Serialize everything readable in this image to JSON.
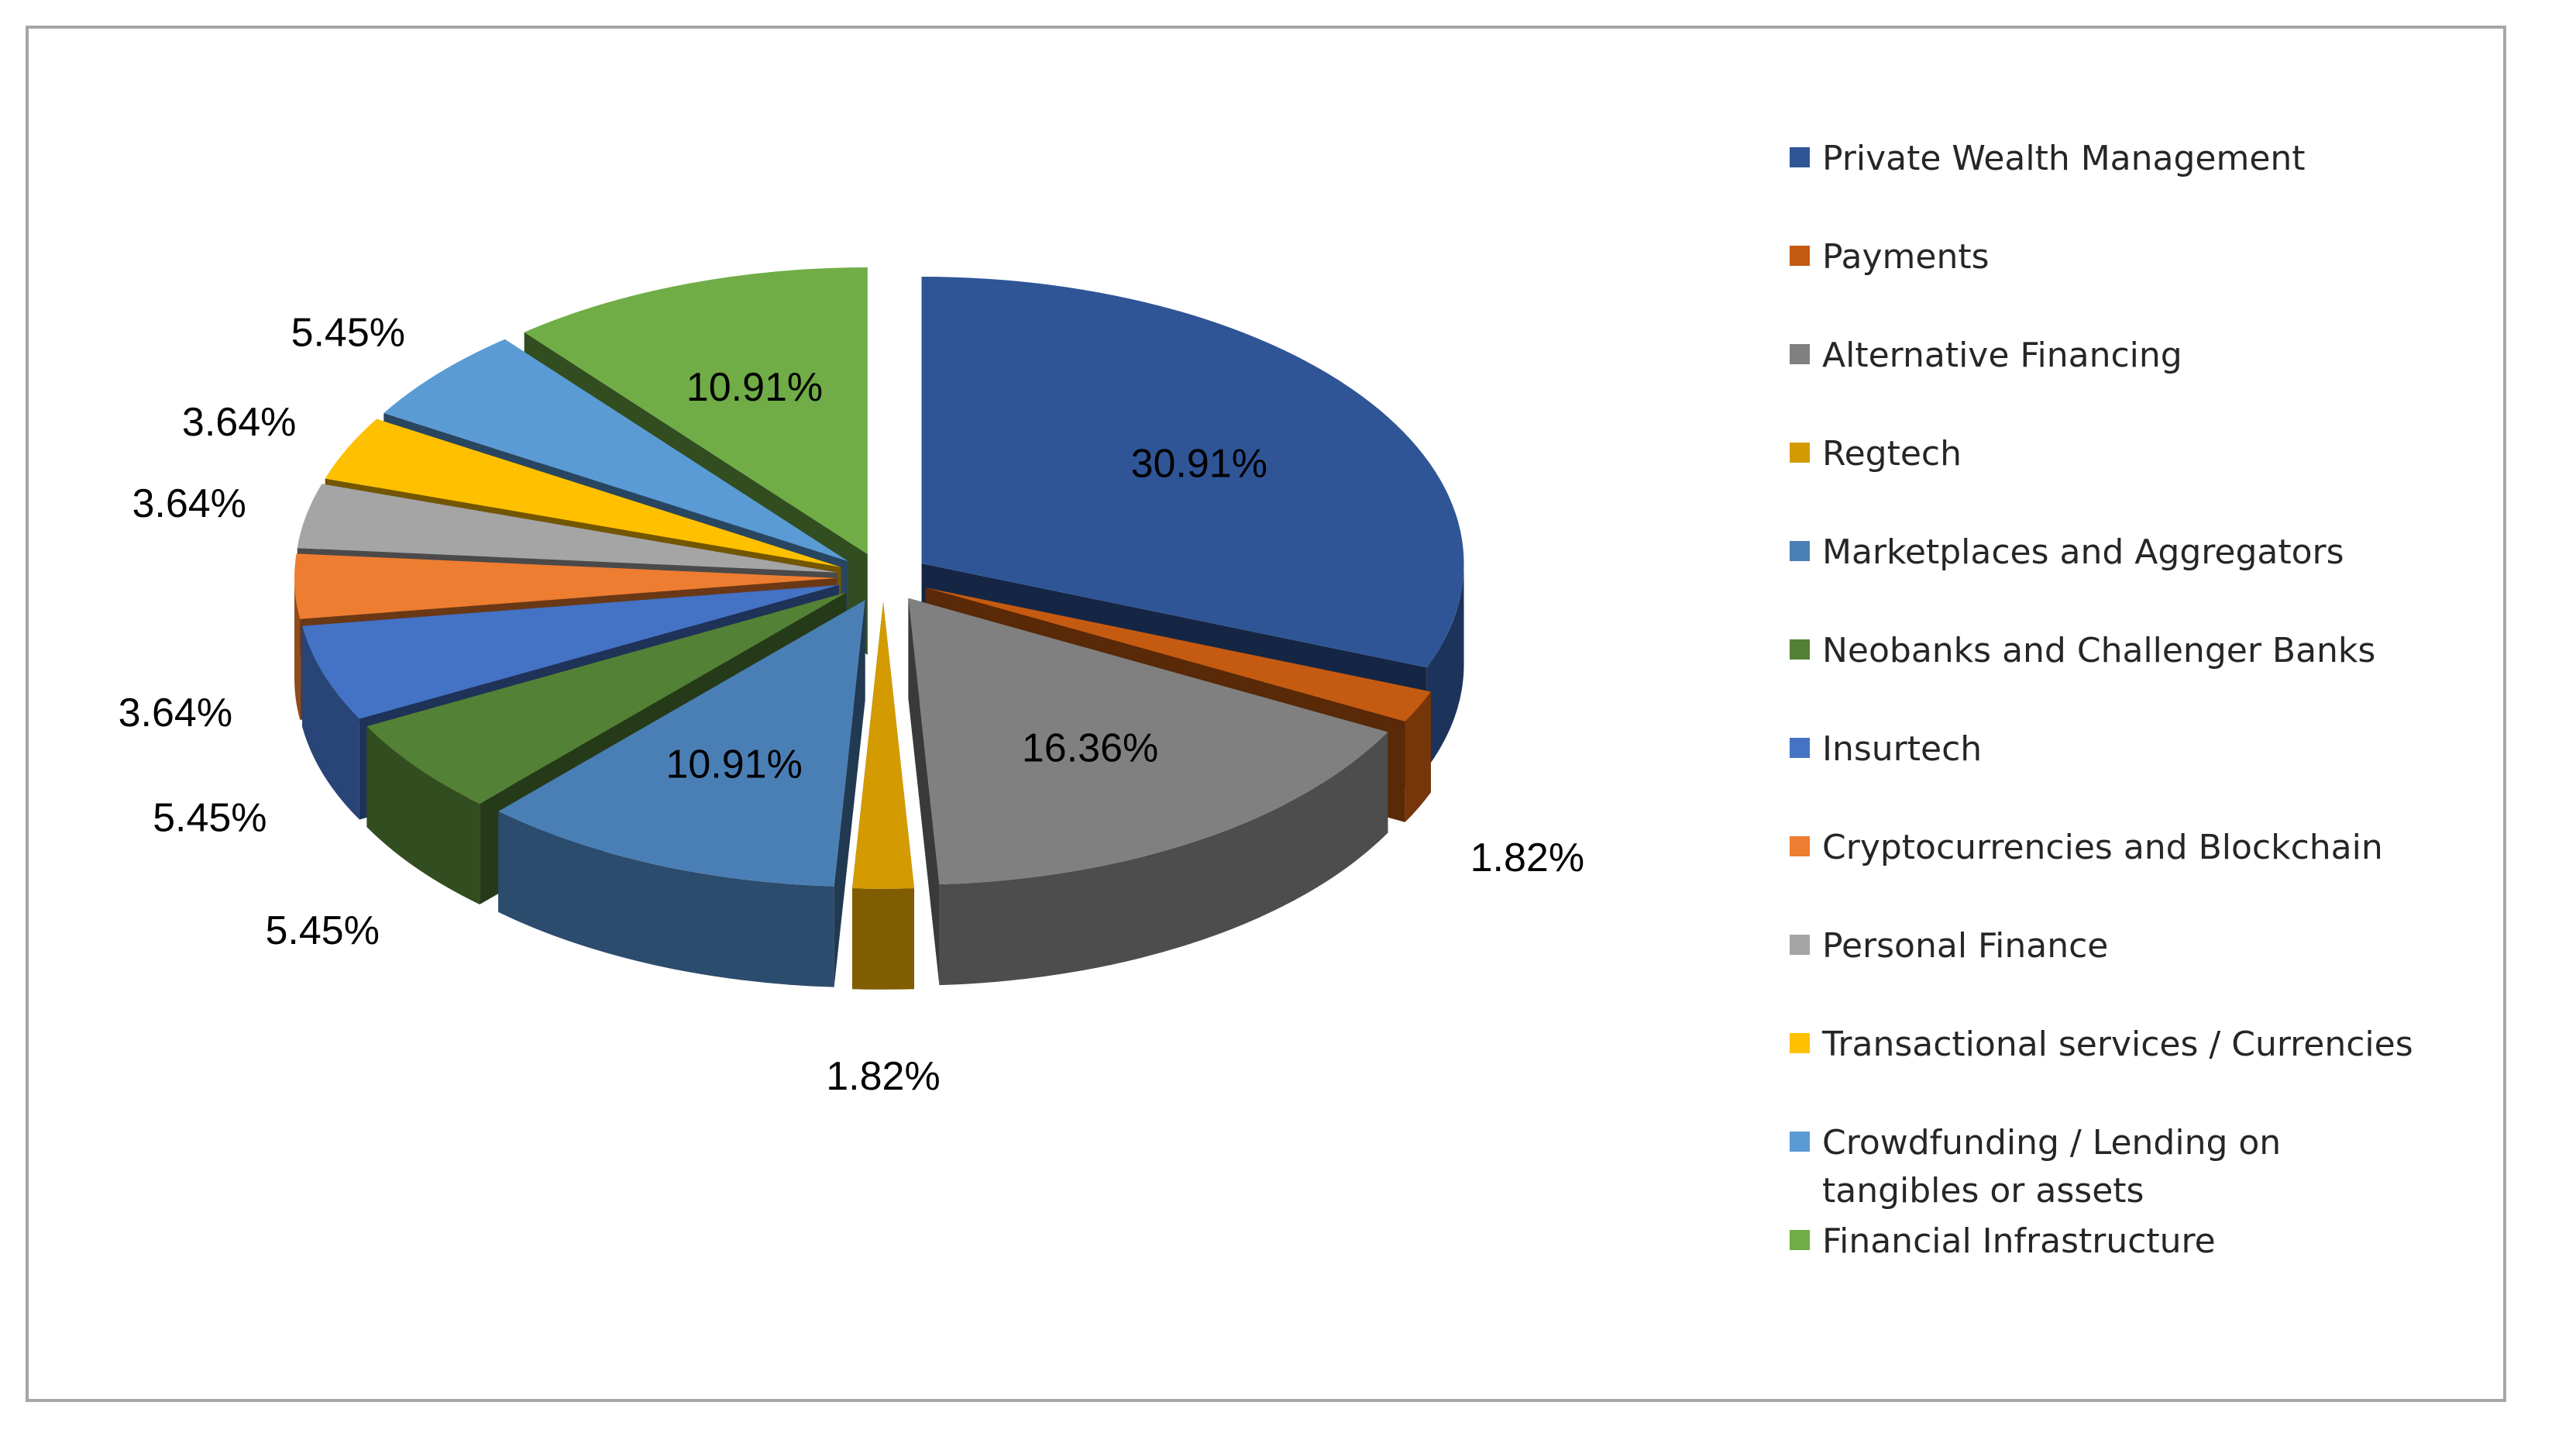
{
  "chart_data": {
    "type": "pie",
    "title": "",
    "legend_position": "right",
    "slices": [
      {
        "label": "Private Wealth Management",
        "value": 30.91,
        "display": "30.91%",
        "color": "#2f5597",
        "label_placement": "inside"
      },
      {
        "label": "Payments",
        "value": 1.82,
        "display": "1.82%",
        "color": "#c55a11",
        "label_placement": "outside"
      },
      {
        "label": "Alternative Financing",
        "value": 16.36,
        "display": "16.36%",
        "color": "#808080",
        "label_placement": "inside"
      },
      {
        "label": "Regtech",
        "value": 1.82,
        "display": "1.82%",
        "color": "#d39b00",
        "label_placement": "outside"
      },
      {
        "label": "Marketplaces and Aggregators",
        "value": 10.91,
        "display": "10.91%",
        "color": "#4a7fb5",
        "label_placement": "inside"
      },
      {
        "label": "Neobanks and Challenger Banks",
        "value": 5.45,
        "display": "5.45%",
        "color": "#538135",
        "label_placement": "outside"
      },
      {
        "label": "Insurtech",
        "value": 5.45,
        "display": "5.45%",
        "color": "#4472c4",
        "label_placement": "outside"
      },
      {
        "label": "Cryptocurrencies and Blockchain",
        "value": 3.64,
        "display": "3.64%",
        "color": "#ed7d31",
        "label_placement": "outside"
      },
      {
        "label": "Personal Finance",
        "value": 3.64,
        "display": "3.64%",
        "color": "#a5a5a5",
        "label_placement": "outside"
      },
      {
        "label": "Transactional services / Currencies",
        "value": 3.64,
        "display": "3.64%",
        "color": "#ffc000",
        "label_placement": "outside"
      },
      {
        "label": "Crowdfunding / Lending on tangibles or assets",
        "value": 5.45,
        "display": "5.45%",
        "color": "#5b9bd5",
        "label_placement": "outside"
      },
      {
        "label": "Financial Infrastructure",
        "value": 10.91,
        "display": "10.91%",
        "color": "#70ad47",
        "label_placement": "inside"
      }
    ]
  }
}
